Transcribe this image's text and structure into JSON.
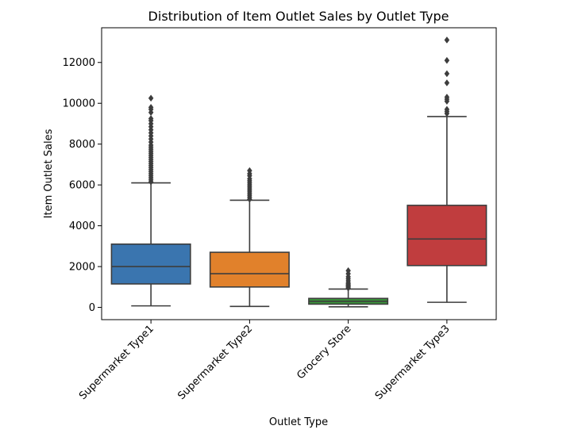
{
  "chart_data": {
    "type": "box",
    "title": "Distribution of Item Outlet Sales by Outlet Type",
    "xlabel": "Outlet Type",
    "ylabel": "Item Outlet Sales",
    "ylim": [
      -600,
      13700
    ],
    "yticks": [
      0,
      2000,
      4000,
      6000,
      8000,
      10000,
      12000
    ],
    "categories": [
      "Supermarket Type1",
      "Supermarket Type2",
      "Grocery Store",
      "Supermarket Type3"
    ],
    "grid": false,
    "legend": "none",
    "boxes": [
      {
        "category": "Supermarket Type1",
        "color": "#3a75af",
        "whisker_low": 75,
        "q1": 1150,
        "median": 2000,
        "q3": 3100,
        "whisker_high": 6100,
        "outliers": [
          6150,
          6250,
          6350,
          6450,
          6550,
          6650,
          6750,
          6850,
          6950,
          7050,
          7150,
          7250,
          7350,
          7450,
          7550,
          7650,
          7750,
          7850,
          7950,
          8100,
          8250,
          8400,
          8550,
          8700,
          8850,
          9000,
          9150,
          9250,
          9550,
          9700,
          9800,
          10250
        ]
      },
      {
        "category": "Supermarket Type2",
        "color": "#e1812b",
        "whisker_low": 50,
        "q1": 1000,
        "median": 1650,
        "q3": 2700,
        "whisker_high": 5250,
        "outliers": [
          5300,
          5400,
          5500,
          5600,
          5700,
          5800,
          5900,
          6000,
          6100,
          6200,
          6300,
          6450,
          6550,
          6700
        ]
      },
      {
        "category": "Grocery Store",
        "color": "#3a923a",
        "whisker_low": 30,
        "q1": 160,
        "median": 300,
        "q3": 440,
        "whisker_high": 900,
        "outliers": [
          950,
          1000,
          1050,
          1100,
          1150,
          1200,
          1300,
          1400,
          1500,
          1650,
          1800
        ]
      },
      {
        "category": "Supermarket Type3",
        "color": "#c03d3e",
        "whisker_low": 250,
        "q1": 2050,
        "median": 3350,
        "q3": 5000,
        "whisker_high": 9350,
        "outliers": [
          9500,
          9600,
          9700,
          10100,
          10200,
          10300,
          11000,
          11450,
          12100,
          13100
        ]
      }
    ]
  }
}
